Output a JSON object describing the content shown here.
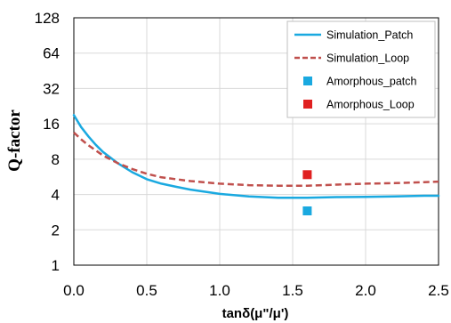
{
  "chart_data": {
    "type": "line",
    "xlabel": "tanδ(μ\"/μ')",
    "ylabel": "Q-factor",
    "xlim": [
      0,
      2.5
    ],
    "ylim": [
      1,
      128
    ],
    "yscale": "log2",
    "x_ticks": [
      "0.0",
      "0.5",
      "1.0",
      "1.5",
      "2.0",
      "2.5"
    ],
    "y_ticks": [
      "1",
      "2",
      "4",
      "8",
      "16",
      "32",
      "64",
      "128"
    ],
    "grid": "major, both axes",
    "legend_position": "top-right, inside plot",
    "series": [
      {
        "name": "Simulation_Patch",
        "kind": "line",
        "style": "solid",
        "color": "#1aa9e0",
        "x": [
          0.0,
          0.05,
          0.1,
          0.15,
          0.2,
          0.3,
          0.4,
          0.5,
          0.6,
          0.7,
          0.8,
          1.0,
          1.2,
          1.4,
          1.6,
          1.8,
          2.0,
          2.2,
          2.4,
          2.5
        ],
        "y": [
          19.0,
          15.0,
          12.5,
          10.6,
          9.2,
          7.4,
          6.2,
          5.4,
          4.95,
          4.65,
          4.4,
          4.05,
          3.85,
          3.75,
          3.75,
          3.8,
          3.82,
          3.85,
          3.9,
          3.9
        ]
      },
      {
        "name": "Simulation_Loop",
        "kind": "line",
        "style": "dashed",
        "color": "#c0504d",
        "x": [
          0.0,
          0.05,
          0.1,
          0.2,
          0.3,
          0.4,
          0.5,
          0.6,
          0.8,
          1.0,
          1.2,
          1.4,
          1.6,
          1.8,
          2.0,
          2.2,
          2.4,
          2.5
        ],
        "y": [
          13.5,
          11.8,
          10.5,
          8.6,
          7.4,
          6.6,
          6.0,
          5.6,
          5.2,
          4.95,
          4.8,
          4.75,
          4.75,
          4.85,
          4.95,
          5.0,
          5.1,
          5.15
        ]
      },
      {
        "name": "Amorphous_patch",
        "kind": "marker",
        "color": "#1aa9e0",
        "x": [
          1.6
        ],
        "y": [
          2.9
        ]
      },
      {
        "name": "Amorphous_Loop",
        "kind": "marker",
        "color": "#e02020",
        "x": [
          1.6
        ],
        "y": [
          5.9
        ]
      }
    ]
  }
}
